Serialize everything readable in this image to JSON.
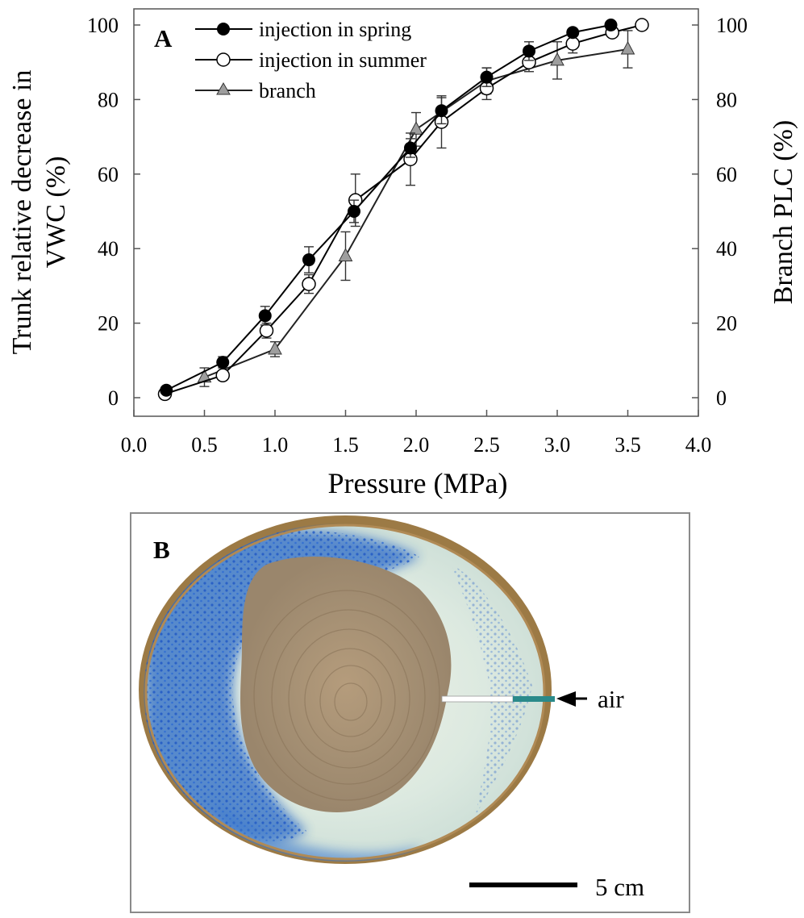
{
  "chart_data": [
    {
      "type": "line",
      "panel_label": "A",
      "xlabel": "Pressure (MPa)",
      "ylabel_left_line1": "Trunk  relative decrease in",
      "ylabel_left_line2": "VWC (%)",
      "ylabel_right": "Branch PLC (%)",
      "xlim": [
        0,
        4
      ],
      "ylim": [
        0,
        100
      ],
      "x_ticks": [
        0.0,
        0.5,
        1.0,
        1.5,
        2.0,
        2.5,
        3.0,
        3.5,
        4.0
      ],
      "x_tick_labels": [
        "0.0",
        "0.5",
        "1.0",
        "1.5",
        "2.0",
        "2.5",
        "3.0",
        "3.5",
        "4.0"
      ],
      "y_ticks": [
        0,
        20,
        40,
        60,
        80,
        100
      ],
      "y_tick_labels": [
        "0",
        "20",
        "40",
        "60",
        "80",
        "100"
      ],
      "legend_position": "top-left",
      "grid": false,
      "series": [
        {
          "name": "injection in spring",
          "marker": "filled-circle",
          "color": "#000000",
          "x": [
            0.23,
            0.63,
            0.93,
            1.24,
            1.56,
            1.96,
            2.18,
            2.5,
            2.8,
            3.11,
            3.38
          ],
          "y": [
            2,
            9.5,
            22,
            37,
            50,
            67,
            77,
            86,
            93,
            98,
            100
          ],
          "err": [
            0,
            1.5,
            2.5,
            3.5,
            3,
            2.5,
            3.5,
            2.5,
            2.5,
            0,
            0
          ]
        },
        {
          "name": "injection in summer",
          "marker": "open-circle",
          "color": "#000000",
          "x": [
            0.22,
            0.63,
            0.94,
            1.24,
            1.57,
            1.96,
            2.18,
            2.5,
            2.8,
            3.11,
            3.39,
            3.6
          ],
          "y": [
            1,
            6,
            18,
            30.5,
            53,
            64,
            74,
            83,
            90,
            95,
            98,
            100
          ],
          "err": [
            0,
            0,
            2,
            2.5,
            7,
            7,
            7,
            3,
            2.5,
            2.5,
            0,
            0
          ]
        },
        {
          "name": "branch",
          "marker": "filled-triangle",
          "color": "#9e9e9e",
          "x": [
            0.5,
            1.0,
            1.5,
            2.0,
            2.5,
            3.0,
            3.5
          ],
          "y": [
            5.5,
            13,
            38,
            72,
            85,
            90.5,
            93.5
          ],
          "err": [
            2.5,
            2,
            6.5,
            4.5,
            3.5,
            5,
            5
          ]
        }
      ]
    }
  ],
  "panel_b": {
    "panel_label": "B",
    "annotation": "air",
    "scale_bar_label": "5 cm",
    "wood_colors": {
      "bark": "#9c7a45",
      "stain": "#2d6cc7",
      "sapwood": "#dde9df",
      "heartwood": "#a48f73",
      "probe": "#2a8a8a"
    }
  }
}
